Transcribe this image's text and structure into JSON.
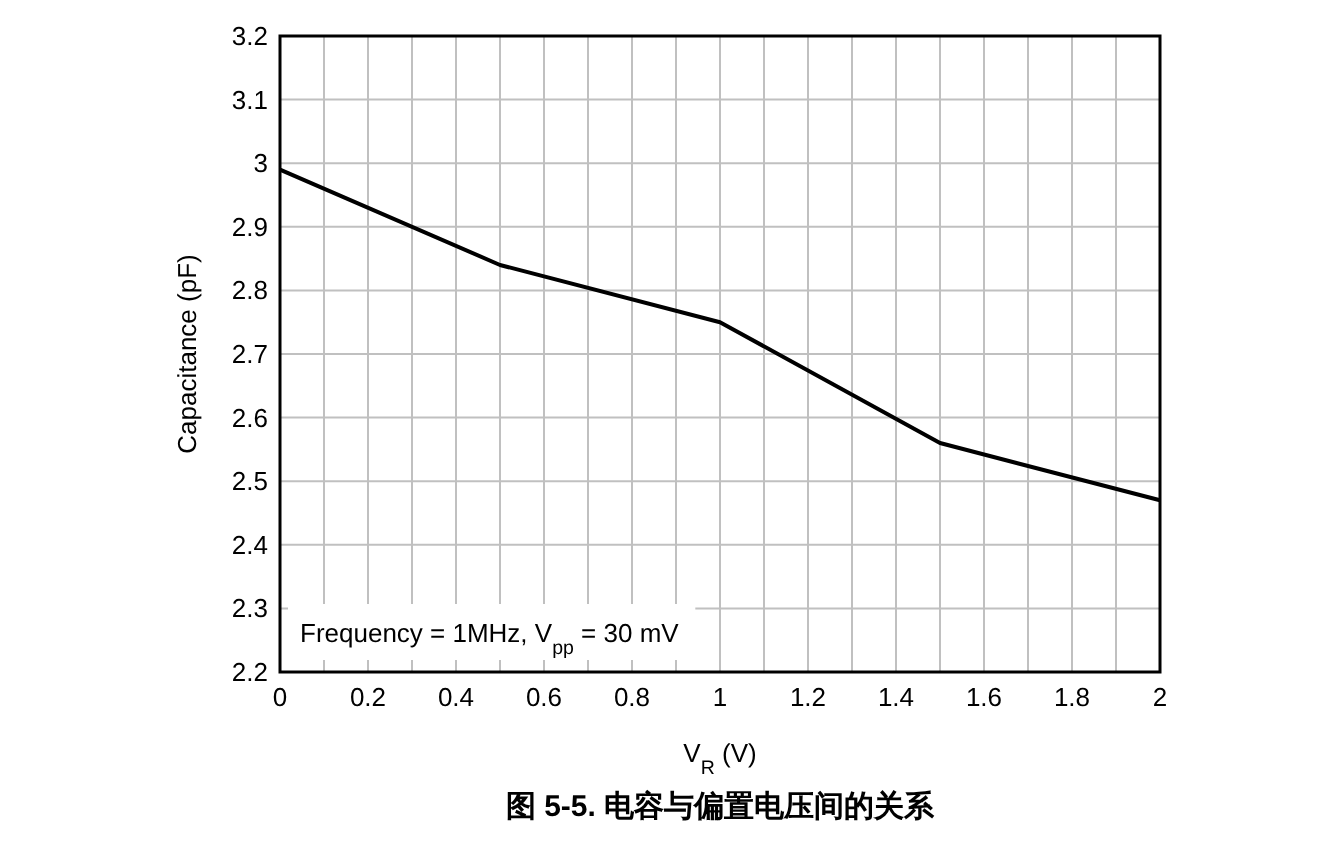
{
  "chart_data": {
    "type": "line",
    "title": "图 5-5. 电容与偏置电压间的关系",
    "xlabel": "V$_{R}$ (V)",
    "ylabel": "Capacitance (pF)",
    "annotations": [
      "Frequency = 1MHz, V$_{pp}$ = 30 mV"
    ],
    "x": [
      0,
      0.5,
      1,
      1.5,
      2
    ],
    "series": [
      {
        "color": "#000000",
        "values": [
          2.99,
          2.84,
          2.75,
          2.56,
          2.47
        ]
      }
    ],
    "xlim": [
      0,
      2
    ],
    "ylim": [
      2.2,
      3.2
    ],
    "xticks": [
      0,
      {
        "value": 0.1,
        "label": null
      },
      0.2,
      {
        "value": 0.3,
        "label": null
      },
      0.4,
      {
        "value": 0.5,
        "label": null
      },
      0.6,
      {
        "value": 0.7,
        "label": null
      },
      0.8,
      {
        "value": 0.9,
        "label": null
      },
      1,
      {
        "value": 1.1,
        "label": null
      },
      1.2,
      {
        "value": 1.3,
        "label": null
      },
      1.4,
      {
        "value": 1.5,
        "label": null
      },
      1.6,
      {
        "value": 1.7,
        "label": null
      },
      1.8,
      {
        "value": 1.9,
        "label": null
      },
      2
    ],
    "yticks": [
      2.2,
      2.3,
      2.4,
      2.5,
      2.6,
      2.7,
      2.8,
      2.9,
      3,
      3.1,
      3.2
    ],
    "grid": true,
    "line_style": "solid",
    "marker": "none"
  }
}
